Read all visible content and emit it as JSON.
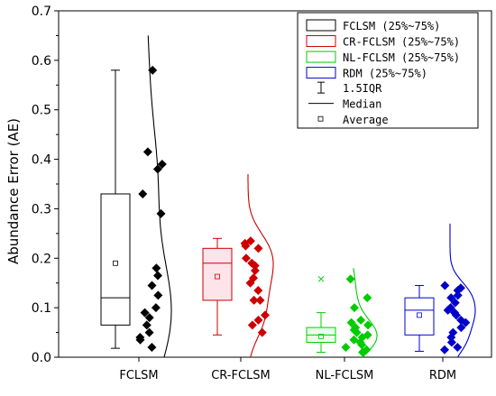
{
  "chart_data": {
    "type": "boxplot",
    "ylabel": "Abundance Error (AE)",
    "ylim": [
      0,
      0.7
    ],
    "yticks": [
      "0.0",
      "0.1",
      "0.2",
      "0.3",
      "0.4",
      "0.5",
      "0.6",
      "0.7"
    ],
    "categories": [
      "FCLSM",
      "CR-FCLSM",
      "NL-FCLSM",
      "RDM"
    ],
    "legend": {
      "position": "top-right",
      "box_labels": [
        "FCLSM (25%~75%)",
        "CR-FCLSM (25%~75%)",
        "NL-FCLSM (25%~75%)",
        "RDM (25%~75%)"
      ],
      "whisker_label": "1.5IQR",
      "median_label": "Median",
      "average_label": "Average"
    },
    "series": [
      {
        "color": "#000000",
        "q1": 0.065,
        "median": 0.12,
        "q3": 0.33,
        "whisker_low": 0.018,
        "whisker_high": 0.58,
        "mean": 0.19,
        "outliers": [],
        "points": [
          0.58,
          0.415,
          0.39,
          0.38,
          0.33,
          0.29,
          0.18,
          0.165,
          0.145,
          0.125,
          0.1,
          0.09,
          0.08,
          0.065,
          0.05,
          0.04,
          0.035,
          0.02
        ],
        "density_range": [
          0,
          0.65
        ]
      },
      {
        "color": "#cc0000",
        "q1": 0.115,
        "median": 0.19,
        "q3": 0.22,
        "whisker_low": 0.045,
        "whisker_high": 0.24,
        "mean": 0.163,
        "outliers": [],
        "points": [
          0.235,
          0.23,
          0.225,
          0.22,
          0.2,
          0.19,
          0.185,
          0.175,
          0.16,
          0.15,
          0.135,
          0.115,
          0.115,
          0.085,
          0.075,
          0.065,
          0.05
        ],
        "density_range": [
          0,
          0.37
        ]
      },
      {
        "color": "#00cc00",
        "q1": 0.03,
        "median": 0.045,
        "q3": 0.06,
        "whisker_low": 0.01,
        "whisker_high": 0.09,
        "mean": 0.042,
        "outliers": [
          0.158
        ],
        "points": [
          0.158,
          0.12,
          0.1,
          0.075,
          0.07,
          0.065,
          0.06,
          0.055,
          0.05,
          0.045,
          0.04,
          0.035,
          0.03,
          0.025,
          0.02,
          0.015,
          0.01
        ],
        "density_range": [
          0,
          0.18
        ]
      },
      {
        "color": "#0000cc",
        "q1": 0.045,
        "median": 0.095,
        "q3": 0.12,
        "whisker_low": 0.012,
        "whisker_high": 0.145,
        "mean": 0.085,
        "outliers": [],
        "points": [
          0.145,
          0.14,
          0.135,
          0.125,
          0.12,
          0.11,
          0.1,
          0.095,
          0.09,
          0.085,
          0.075,
          0.07,
          0.06,
          0.05,
          0.04,
          0.03,
          0.02,
          0.015
        ],
        "density_range": [
          0,
          0.27
        ]
      }
    ]
  }
}
